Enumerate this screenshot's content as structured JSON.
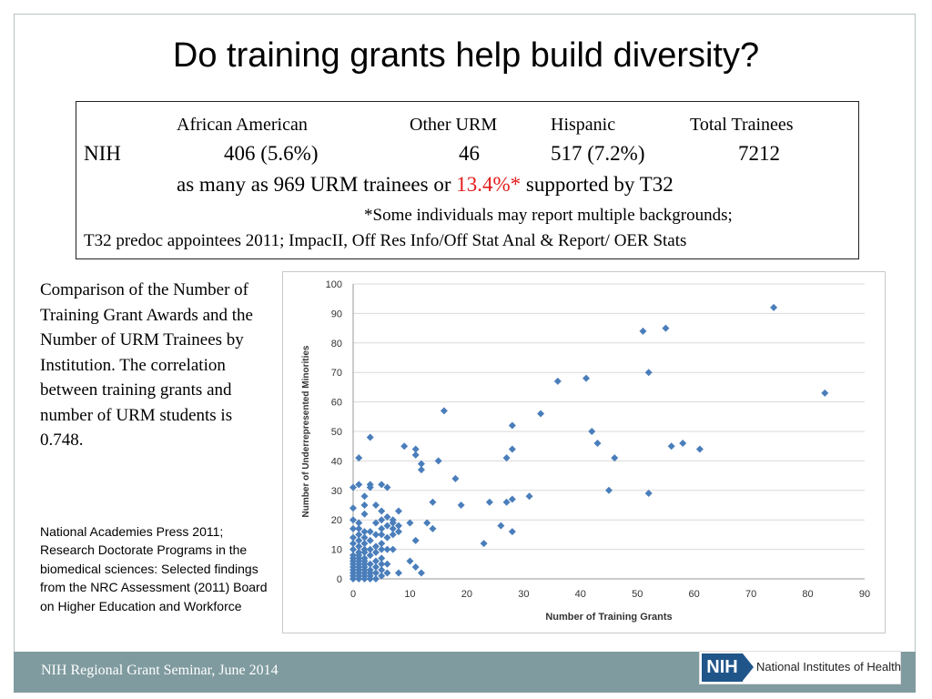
{
  "slide": {
    "title": "Do training grants help build diversity?",
    "table": {
      "headers": [
        "African American",
        "Other URM",
        "Hispanic",
        "Total Trainees"
      ],
      "row_label": "NIH",
      "values": [
        "406 (5.6%)",
        "46",
        "517 (7.2%)",
        "7212"
      ],
      "summary_pre": "as many as 969 URM trainees or",
      "summary_highlight": "13.4%*",
      "summary_post": "supported by T32",
      "note": "*Some individuals may report multiple backgrounds;",
      "source": "T32 predoc appointees 2011; ImpacII, Off Res Info/Off Stat Anal & Report/ OER Stats",
      "highlight_color": "#e41a1a"
    },
    "description": "Comparison of the Number of Training Grant Awards and the Number of URM Trainees by Institution. The correlation between training grants and number of URM students is 0.748.",
    "reference": "National Academies Press 2011; Research Doctorate Programs in the biomedical sciences: Selected findings from the NRC Assessment (2011) Board on Higher Education and Workforce",
    "footer": {
      "text": "NIH Regional Grant Seminar, June 2014",
      "logo_mark": "NIH",
      "logo_text": "National Institutes of Health",
      "color": "#7f9b9f"
    }
  },
  "chart_data": {
    "type": "scatter",
    "xlabel": "Number of Training Grants",
    "ylabel": "Number of Underrepresented Minorities",
    "xlim": [
      0,
      90
    ],
    "ylim": [
      0,
      100
    ],
    "xticks": [
      0,
      10,
      20,
      30,
      40,
      50,
      60,
      70,
      80,
      90
    ],
    "yticks": [
      0,
      10,
      20,
      30,
      40,
      50,
      60,
      70,
      80,
      90,
      100
    ],
    "grid": "horizontal",
    "marker_color": "#4a7ebb",
    "points": [
      [
        0,
        0
      ],
      [
        0,
        1
      ],
      [
        0,
        2
      ],
      [
        0,
        3
      ],
      [
        0,
        4
      ],
      [
        0,
        5
      ],
      [
        0,
        6
      ],
      [
        0,
        7
      ],
      [
        0,
        8
      ],
      [
        0,
        10
      ],
      [
        0,
        12
      ],
      [
        0,
        14
      ],
      [
        0,
        17
      ],
      [
        0,
        20
      ],
      [
        0,
        24
      ],
      [
        0,
        31
      ],
      [
        1,
        0
      ],
      [
        1,
        1
      ],
      [
        1,
        2
      ],
      [
        1,
        3
      ],
      [
        1,
        4
      ],
      [
        1,
        5
      ],
      [
        1,
        6
      ],
      [
        1,
        7
      ],
      [
        1,
        8
      ],
      [
        1,
        9
      ],
      [
        1,
        11
      ],
      [
        1,
        13
      ],
      [
        1,
        15
      ],
      [
        1,
        17
      ],
      [
        1,
        19
      ],
      [
        1,
        32
      ],
      [
        1,
        41
      ],
      [
        2,
        0
      ],
      [
        2,
        1
      ],
      [
        2,
        2
      ],
      [
        2,
        3
      ],
      [
        2,
        4
      ],
      [
        2,
        5
      ],
      [
        2,
        6
      ],
      [
        2,
        7
      ],
      [
        2,
        9
      ],
      [
        2,
        10
      ],
      [
        2,
        12
      ],
      [
        2,
        14
      ],
      [
        2,
        16
      ],
      [
        2,
        22
      ],
      [
        2,
        25
      ],
      [
        2,
        28
      ],
      [
        3,
        0
      ],
      [
        3,
        1
      ],
      [
        3,
        2
      ],
      [
        3,
        3
      ],
      [
        3,
        5
      ],
      [
        3,
        8
      ],
      [
        3,
        10
      ],
      [
        3,
        13
      ],
      [
        3,
        16
      ],
      [
        3,
        31
      ],
      [
        3,
        32
      ],
      [
        3,
        48
      ],
      [
        4,
        0
      ],
      [
        4,
        2
      ],
      [
        4,
        4
      ],
      [
        4,
        6
      ],
      [
        4,
        9
      ],
      [
        4,
        11
      ],
      [
        4,
        15
      ],
      [
        4,
        19
      ],
      [
        4,
        25
      ],
      [
        5,
        1
      ],
      [
        5,
        3
      ],
      [
        5,
        5
      ],
      [
        5,
        7
      ],
      [
        5,
        10
      ],
      [
        5,
        12
      ],
      [
        5,
        15
      ],
      [
        5,
        17
      ],
      [
        5,
        20
      ],
      [
        5,
        23
      ],
      [
        5,
        32
      ],
      [
        6,
        2
      ],
      [
        6,
        5
      ],
      [
        6,
        10
      ],
      [
        6,
        14
      ],
      [
        6,
        18
      ],
      [
        6,
        21
      ],
      [
        6,
        31
      ],
      [
        7,
        10
      ],
      [
        7,
        15
      ],
      [
        7,
        17
      ],
      [
        7,
        19
      ],
      [
        7,
        20
      ],
      [
        8,
        2
      ],
      [
        8,
        16
      ],
      [
        8,
        18
      ],
      [
        8,
        23
      ],
      [
        9,
        45
      ],
      [
        10,
        6
      ],
      [
        10,
        19
      ],
      [
        11,
        4
      ],
      [
        11,
        13
      ],
      [
        11,
        42
      ],
      [
        11,
        44
      ],
      [
        12,
        2
      ],
      [
        12,
        37
      ],
      [
        12,
        39
      ],
      [
        13,
        19
      ],
      [
        14,
        17
      ],
      [
        14,
        26
      ],
      [
        15,
        40
      ],
      [
        16,
        57
      ],
      [
        18,
        34
      ],
      [
        19,
        25
      ],
      [
        23,
        12
      ],
      [
        24,
        26
      ],
      [
        26,
        18
      ],
      [
        27,
        26
      ],
      [
        27,
        41
      ],
      [
        28,
        16
      ],
      [
        28,
        27
      ],
      [
        28,
        44
      ],
      [
        28,
        52
      ],
      [
        31,
        28
      ],
      [
        33,
        56
      ],
      [
        36,
        67
      ],
      [
        41,
        68
      ],
      [
        42,
        50
      ],
      [
        43,
        46
      ],
      [
        45,
        30
      ],
      [
        46,
        41
      ],
      [
        51,
        84
      ],
      [
        52,
        29
      ],
      [
        52,
        70
      ],
      [
        55,
        85
      ],
      [
        56,
        45
      ],
      [
        58,
        46
      ],
      [
        61,
        44
      ],
      [
        74,
        92
      ],
      [
        83,
        63
      ]
    ]
  }
}
